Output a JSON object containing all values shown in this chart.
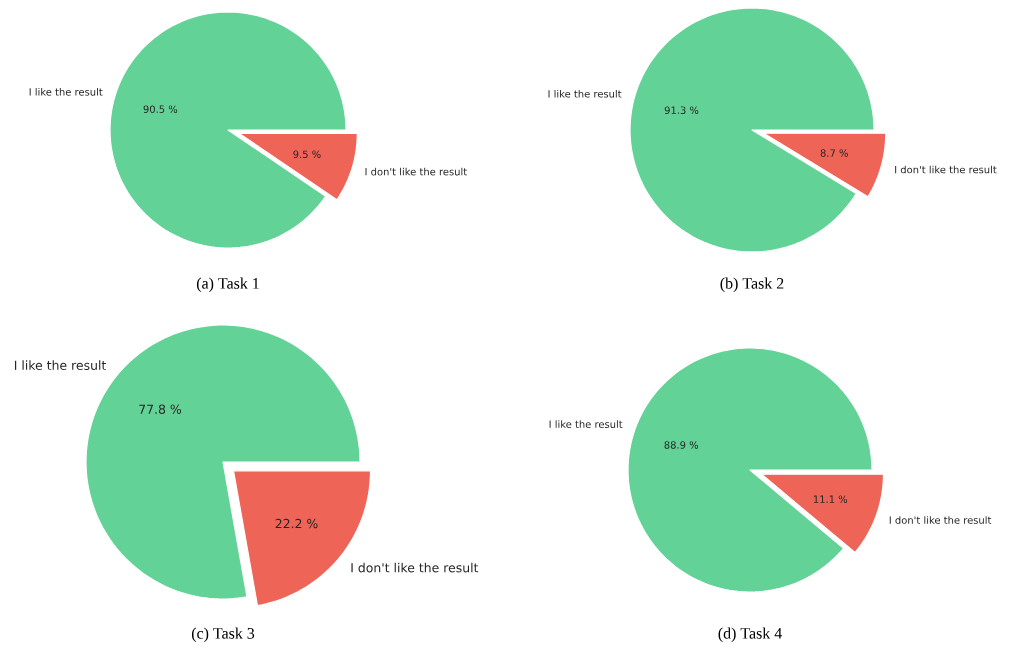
{
  "chart_data": [
    {
      "type": "pie",
      "title": "(a) Task 1",
      "categories": [
        "I like the result",
        "I don't like the result"
      ],
      "values": [
        90.5,
        9.5
      ],
      "colors": [
        "#62d296",
        "#ee6457"
      ],
      "value_labels": [
        "90.5 %",
        "9.5 %"
      ]
    },
    {
      "type": "pie",
      "title": "(b) Task 2",
      "categories": [
        "I like the result",
        "I don't like the result"
      ],
      "values": [
        91.3,
        8.7
      ],
      "colors": [
        "#62d296",
        "#ee6457"
      ],
      "value_labels": [
        "91.3 %",
        "8.7 %"
      ]
    },
    {
      "type": "pie",
      "title": "(c) Task 3",
      "categories": [
        "I like the result",
        "I don't like the result"
      ],
      "values": [
        77.8,
        22.2
      ],
      "colors": [
        "#62d296",
        "#ee6457"
      ],
      "value_labels": [
        "77.8 %",
        "22.2 %"
      ]
    },
    {
      "type": "pie",
      "title": "(d) Task 4",
      "categories": [
        "I like the result",
        "I don't like the result"
      ],
      "values": [
        88.9,
        11.1
      ],
      "colors": [
        "#62d296",
        "#ee6457"
      ],
      "value_labels": [
        "88.9 %",
        "11.1 %"
      ]
    }
  ]
}
